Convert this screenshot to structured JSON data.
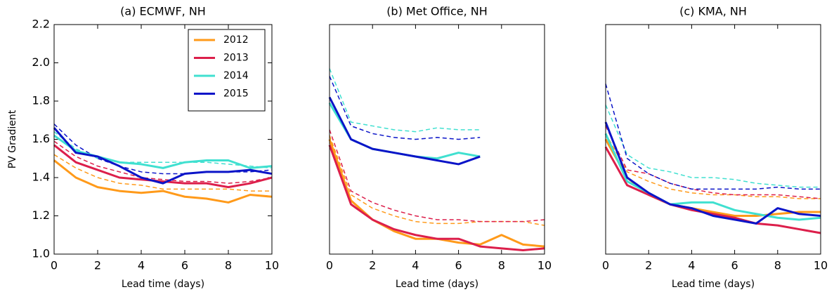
{
  "chart_data": [
    {
      "type": "line",
      "title": "(a) ECMWF, NH",
      "xlabel": "Lead time (days)",
      "ylabel": "PV Gradient",
      "x": [
        0,
        1,
        2,
        3,
        4,
        5,
        6,
        7,
        8,
        9,
        10
      ],
      "xlim": [
        0,
        10
      ],
      "xticks": [
        0,
        2,
        4,
        6,
        8,
        10
      ],
      "ylim": [
        1.0,
        2.2
      ],
      "yticks": [
        {
          "value": 1,
          "label": "1.0"
        },
        1.2,
        1.4,
        1.6,
        1.8,
        {
          "value": 2,
          "label": "2.0"
        },
        2.2
      ],
      "legend": "upper right",
      "series": [
        {
          "name": "2012",
          "color": "#ff9a1a",
          "values": [
            1.49,
            1.4,
            1.35,
            1.33,
            1.32,
            1.33,
            1.3,
            1.29,
            1.27,
            1.31,
            1.3
          ],
          "dashed_values": [
            1.52,
            1.45,
            1.4,
            1.37,
            1.36,
            1.34,
            1.34,
            1.34,
            1.34,
            1.33,
            1.33
          ]
        },
        {
          "name": "2013",
          "color": "#dc1f4b",
          "values": [
            1.57,
            1.48,
            1.44,
            1.4,
            1.39,
            1.38,
            1.37,
            1.37,
            1.35,
            1.37,
            1.4
          ],
          "dashed_values": [
            1.59,
            1.51,
            1.46,
            1.43,
            1.4,
            1.39,
            1.38,
            1.38,
            1.37,
            1.38,
            1.4
          ]
        },
        {
          "name": "2014",
          "color": "#40e0d0",
          "values": [
            1.62,
            1.54,
            1.51,
            1.48,
            1.47,
            1.45,
            1.48,
            1.49,
            1.49,
            1.45,
            1.46
          ],
          "dashed_values": [
            1.64,
            1.55,
            1.5,
            1.48,
            1.48,
            1.48,
            1.48,
            1.48,
            1.47,
            1.46,
            1.45
          ]
        },
        {
          "name": "2015",
          "color": "#0b14c8",
          "values": [
            1.66,
            1.53,
            1.51,
            1.46,
            1.4,
            1.37,
            1.42,
            1.43,
            1.43,
            1.44,
            1.42
          ],
          "dashed_values": [
            1.68,
            1.57,
            1.5,
            1.46,
            1.43,
            1.42,
            1.42,
            1.43,
            1.43,
            1.43,
            1.44
          ]
        }
      ]
    },
    {
      "type": "line",
      "title": "(b) Met Office, NH",
      "xlabel": "Lead time (days)",
      "x": [
        0,
        1,
        2,
        3,
        4,
        5,
        6,
        7,
        8,
        9,
        10
      ],
      "xlim": [
        0,
        10
      ],
      "xticks": [
        0,
        2,
        4,
        6,
        8,
        10
      ],
      "ylim": [
        1.0,
        2.2
      ],
      "series": [
        {
          "color": "#ff9a1a",
          "values": [
            1.6,
            1.28,
            1.18,
            1.12,
            1.08,
            1.08,
            1.06,
            1.05,
            1.1,
            1.05,
            1.04
          ],
          "dashed_values": [
            1.62,
            1.31,
            1.24,
            1.2,
            1.17,
            1.16,
            1.16,
            1.17,
            1.17,
            1.17,
            1.15
          ]
        },
        {
          "color": "#dc1f4b",
          "values": [
            1.57,
            1.26,
            1.18,
            1.13,
            1.1,
            1.08,
            1.08,
            1.04,
            1.03,
            1.02,
            1.03
          ],
          "dashed_values": [
            1.65,
            1.33,
            1.27,
            1.23,
            1.2,
            1.18,
            1.18,
            1.17,
            1.17,
            1.17,
            1.18
          ]
        },
        {
          "color": "#40e0d0",
          "values": [
            1.79,
            1.6,
            1.55,
            1.53,
            1.51,
            1.5,
            1.53,
            1.51,
            null,
            null,
            null
          ],
          "dashed_values": [
            1.97,
            1.69,
            1.67,
            1.65,
            1.64,
            1.66,
            1.65,
            1.65,
            null,
            null,
            null
          ]
        },
        {
          "color": "#0b14c8",
          "values": [
            1.82,
            1.6,
            1.55,
            1.53,
            1.51,
            1.49,
            1.47,
            1.51,
            null,
            null,
            null
          ],
          "dashed_values": [
            1.93,
            1.67,
            1.63,
            1.61,
            1.6,
            1.61,
            1.6,
            1.61,
            null,
            null,
            null
          ]
        }
      ]
    },
    {
      "type": "line",
      "title": "(c) KMA, NH",
      "xlabel": "Lead time (days)",
      "x": [
        0,
        1,
        2,
        3,
        4,
        5,
        6,
        7,
        8,
        9,
        10
      ],
      "xlim": [
        0,
        10
      ],
      "xticks": [
        0,
        2,
        4,
        6,
        8,
        10
      ],
      "ylim": [
        1.0,
        2.2
      ],
      "series": [
        {
          "color": "#ff9a1a",
          "values": [
            1.6,
            1.4,
            1.31,
            1.26,
            1.24,
            1.22,
            1.2,
            1.2,
            1.21,
            1.22,
            1.22
          ],
          "dashed_values": [
            1.63,
            1.43,
            1.38,
            1.34,
            1.32,
            1.31,
            1.31,
            1.3,
            1.3,
            1.29,
            1.29
          ]
        },
        {
          "color": "#dc1f4b",
          "values": [
            1.56,
            1.36,
            1.31,
            1.26,
            1.23,
            1.21,
            1.19,
            1.16,
            1.15,
            1.13,
            1.11
          ],
          "dashed_values": [
            1.67,
            1.44,
            1.42,
            1.37,
            1.34,
            1.32,
            1.31,
            1.31,
            1.31,
            1.3,
            1.29
          ]
        },
        {
          "color": "#40e0d0",
          "values": [
            1.63,
            1.38,
            1.32,
            1.26,
            1.27,
            1.27,
            1.23,
            1.21,
            1.19,
            1.18,
            1.19
          ],
          "dashed_values": [
            1.78,
            1.52,
            1.45,
            1.43,
            1.4,
            1.4,
            1.39,
            1.37,
            1.36,
            1.35,
            1.35
          ]
        },
        {
          "color": "#0b14c8",
          "values": [
            1.69,
            1.4,
            1.32,
            1.26,
            1.24,
            1.2,
            1.18,
            1.16,
            1.24,
            1.21,
            1.2
          ],
          "dashed_values": [
            1.89,
            1.5,
            1.42,
            1.37,
            1.34,
            1.34,
            1.34,
            1.34,
            1.35,
            1.34,
            1.34
          ]
        }
      ]
    }
  ]
}
